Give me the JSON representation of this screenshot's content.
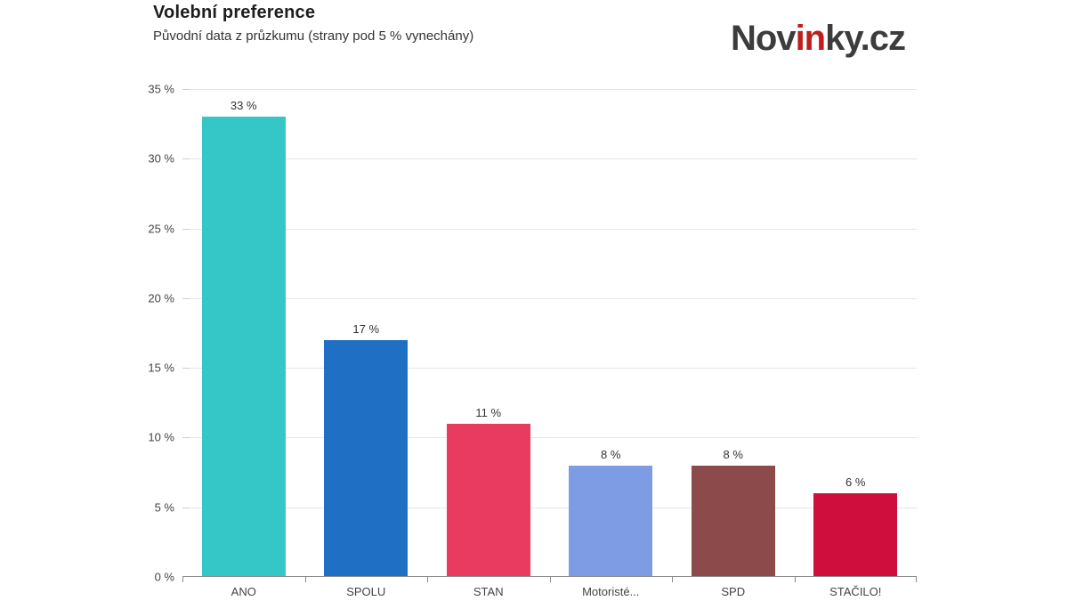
{
  "header": {
    "title": "Volební preference",
    "subtitle": "Původní data z průzkumu (strany pod 5 % vynechány)"
  },
  "logo": {
    "part1": "Nov",
    "part2": "in",
    "part3": "ky.cz",
    "color_text": "#3c3c3c",
    "color_accent": "#be1e1e"
  },
  "chart_data": {
    "type": "bar",
    "title": "Volební preference",
    "subtitle": "Původní data z průzkumu (strany pod 5 % vynechány)",
    "categories": [
      "ANO",
      "SPOLU",
      "STAN",
      "Motoristé...",
      "SPD",
      "STAČILO!"
    ],
    "values": [
      33,
      17,
      11,
      8,
      8,
      6
    ],
    "value_labels": [
      "33 %",
      "17 %",
      "11 %",
      "8 %",
      "8 %",
      "6 %"
    ],
    "bar_colors": [
      "#35c7c7",
      "#1f6fc5",
      "#e93a5f",
      "#7d9ce4",
      "#8c4a4b",
      "#d00e3e"
    ],
    "ylim": [
      0,
      35
    ],
    "yticks": [
      0,
      5,
      10,
      15,
      20,
      25,
      30,
      35
    ],
    "ytick_labels": [
      "0 %",
      "5 %",
      "10 %",
      "15 %",
      "20 %",
      "25 %",
      "30 %",
      "35 %"
    ],
    "grid": "horizontal-light",
    "legend": "none",
    "axis_color": "#8c8c8c",
    "gridline_color": "#e6e6e6",
    "label_color": "#444444"
  }
}
